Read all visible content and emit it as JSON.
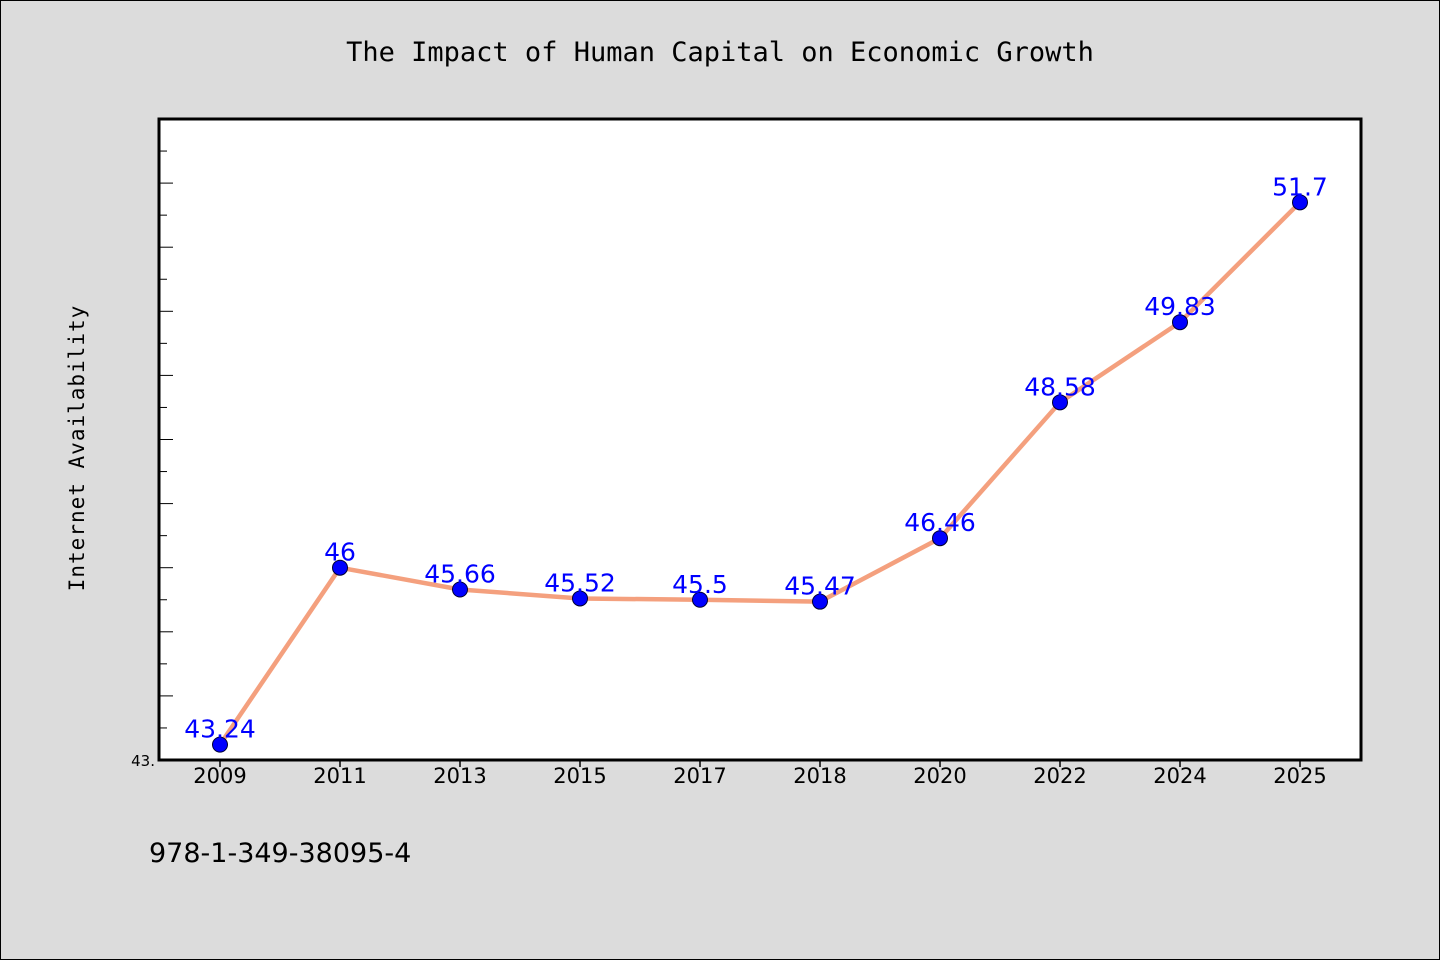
{
  "chart_data": {
    "type": "line",
    "title": "The Impact of Human Capital on Economic Growth",
    "xlabel": "",
    "ylabel": "Internet Availability",
    "categories": [
      "2009",
      "2011",
      "2013",
      "2015",
      "2017",
      "2018",
      "2020",
      "2022",
      "2024",
      "2025"
    ],
    "series": [
      {
        "values": [
          43.24,
          46,
          45.66,
          45.52,
          45.5,
          45.47,
          46.46,
          48.58,
          49.83,
          51.7
        ],
        "labels": [
          "43.24",
          "46",
          "45.66",
          "45.52",
          "45.5",
          "45.47",
          "46.46",
          "48.58",
          "49.83",
          "51.7"
        ]
      }
    ],
    "ylim": [
      43,
      53
    ],
    "ytick_label": "43.",
    "grid": false,
    "legend": "none",
    "colors": {
      "line": "#f4a07e",
      "marker": "#0000ff",
      "data_label": "#0000ff",
      "plot_background": "#ffffff",
      "figure_background": "#dcdcdc"
    }
  },
  "footer": {
    "isbn": "978-1-349-38095-4"
  }
}
